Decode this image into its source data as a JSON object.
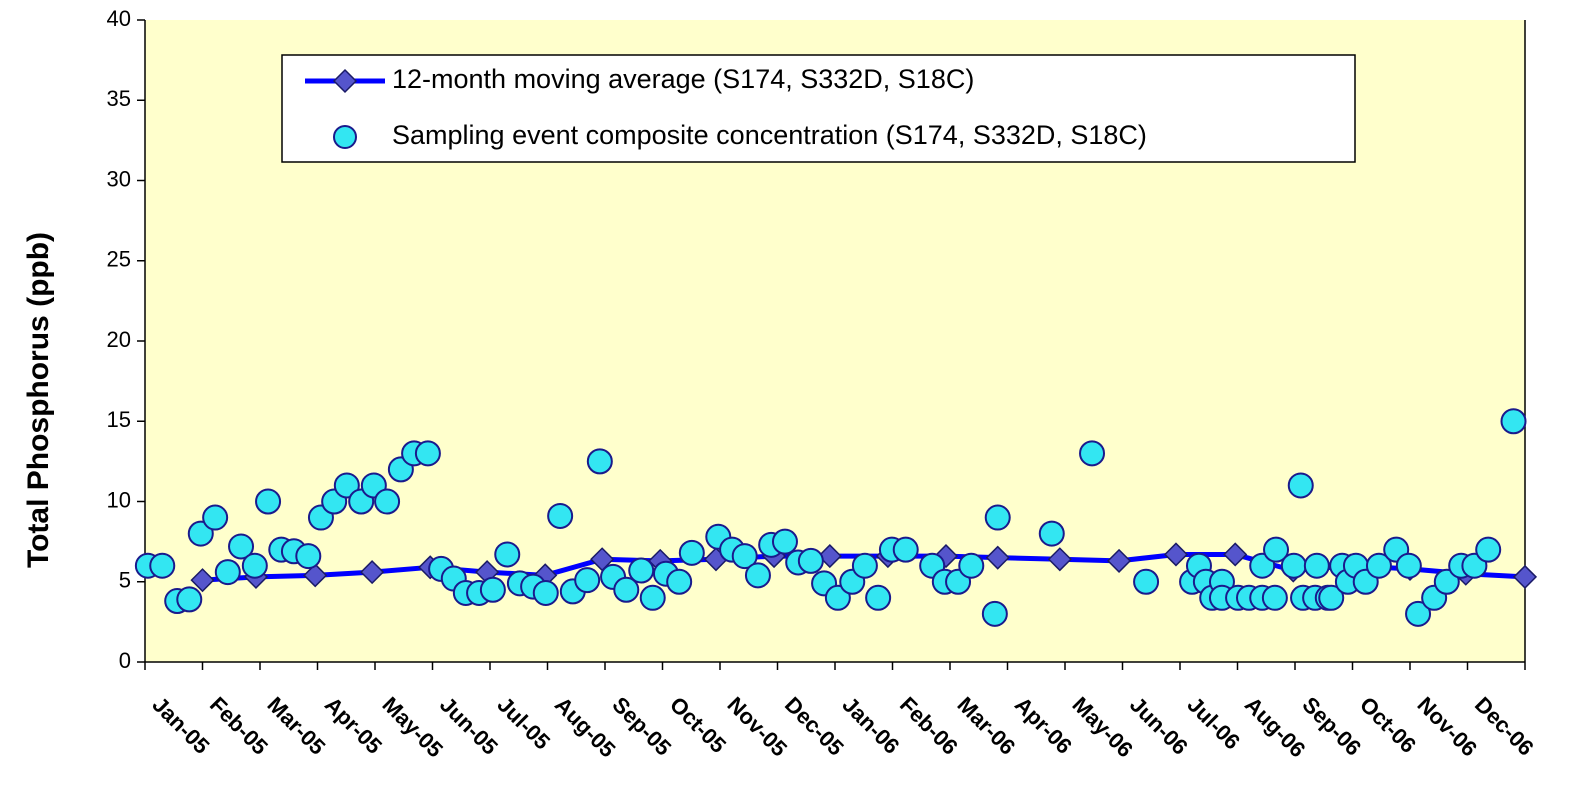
{
  "chart_data": {
    "type": "line",
    "y_label": "Total Phosphorus (ppb)",
    "xlim": [
      0,
      24
    ],
    "xticks": [
      {
        "value": 0,
        "label": "Jan-05"
      },
      {
        "value": 1,
        "label": "Feb-05"
      },
      {
        "value": 2,
        "label": "Mar-05"
      },
      {
        "value": 3,
        "label": "Apr-05"
      },
      {
        "value": 4,
        "label": "May-05"
      },
      {
        "value": 5,
        "label": "Jun-05"
      },
      {
        "value": 6,
        "label": "Jul-05"
      },
      {
        "value": 7,
        "label": "Aug-05"
      },
      {
        "value": 8,
        "label": "Sep-05"
      },
      {
        "value": 9,
        "label": "Oct-05"
      },
      {
        "value": 10,
        "label": "Nov-05"
      },
      {
        "value": 11,
        "label": "Dec-05"
      },
      {
        "value": 12,
        "label": "Jan-06"
      },
      {
        "value": 13,
        "label": "Feb-06"
      },
      {
        "value": 14,
        "label": "Mar-06"
      },
      {
        "value": 15,
        "label": "Apr-06"
      },
      {
        "value": 16,
        "label": "May-06"
      },
      {
        "value": 17,
        "label": "Jun-06"
      },
      {
        "value": 18,
        "label": "Jul-06"
      },
      {
        "value": 19,
        "label": "Aug-06"
      },
      {
        "value": 20,
        "label": "Sep-06"
      },
      {
        "value": 21,
        "label": "Oct-06"
      },
      {
        "value": 22,
        "label": "Nov-06"
      },
      {
        "value": 23,
        "label": "Dec-06"
      }
    ],
    "ylim": [
      0,
      40
    ],
    "yticks": [
      0,
      5,
      10,
      15,
      20,
      25,
      30,
      35,
      40
    ],
    "grid": false,
    "legend": "upper center",
    "plot_background": "#ffffcc",
    "series": [
      {
        "name": "12-month moving average (S174, S332D, S18C)",
        "color": "#0000ff",
        "marker_color": "#5555cc",
        "mode": "lines+markers",
        "x": [
          1,
          1.93,
          2.96,
          3.95,
          4.96,
          5.95,
          6.96,
          7.95,
          8.96,
          9.93,
          10.94,
          11.91,
          12.92,
          13.93,
          14.83,
          15.91,
          16.94,
          17.93,
          18.96,
          19.97,
          20.96,
          22.0,
          22.97,
          24.0
        ],
        "values": [
          5.1,
          5.3,
          5.4,
          5.6,
          5.9,
          5.6,
          5.4,
          6.4,
          6.3,
          6.4,
          6.6,
          6.6,
          6.6,
          6.6,
          6.5,
          6.4,
          6.3,
          6.7,
          6.7,
          5.7,
          6.0,
          5.8,
          5.5,
          5.3
        ]
      },
      {
        "name": "Sampling event composite concentration (S174, S332D, S18C)",
        "color": "#33e6f2",
        "mode": "markers",
        "x": [
          0.05,
          0.3,
          0.56,
          0.77,
          0.97,
          1.22,
          1.44,
          1.67,
          1.91,
          2.14,
          2.37,
          2.59,
          2.84,
          3.06,
          3.29,
          3.51,
          3.76,
          3.98,
          4.21,
          4.45,
          4.68,
          4.92,
          5.15,
          5.37,
          5.58,
          5.81,
          6.05,
          6.3,
          6.52,
          6.75,
          6.97,
          7.22,
          7.44,
          7.69,
          7.91,
          8.14,
          8.37,
          8.63,
          8.83,
          9.06,
          9.29,
          9.51,
          9.97,
          10.21,
          10.43,
          10.66,
          10.89,
          11.13,
          11.36,
          11.58,
          11.81,
          12.05,
          12.3,
          12.52,
          12.75,
          12.99,
          13.23,
          13.69,
          13.91,
          14.14,
          14.37,
          14.78,
          14.83,
          15.77,
          16.47,
          17.41,
          18.21,
          18.33,
          18.45,
          18.56,
          18.73,
          18.73,
          19.01,
          19.2,
          19.43,
          19.43,
          19.65,
          19.67,
          19.98,
          20.1,
          20.14,
          20.35,
          20.38,
          20.57,
          20.63,
          20.82,
          20.92,
          21.06,
          21.23,
          21.46,
          21.76,
          21.98,
          22.14,
          22.42,
          22.64,
          22.89,
          23.12,
          23.36,
          23.8
        ],
        "values": [
          6,
          6,
          3.8,
          3.9,
          8,
          9,
          5.6,
          7.2,
          6,
          10,
          7,
          6.9,
          6.6,
          9,
          10,
          11,
          10,
          11,
          10,
          12,
          13,
          13,
          5.8,
          5.2,
          4.3,
          4.3,
          4.5,
          6.7,
          4.9,
          4.7,
          4.3,
          9.1,
          4.4,
          5.1,
          12.5,
          5.3,
          4.5,
          5.7,
          4,
          5.5,
          5,
          6.8,
          7.8,
          7,
          6.6,
          5.4,
          7.3,
          7.5,
          6.2,
          6.3,
          4.9,
          4,
          5,
          6,
          4,
          7,
          7,
          6,
          5,
          5,
          6,
          3,
          9,
          8,
          13,
          5,
          5,
          6,
          5,
          4,
          5,
          4,
          4,
          4,
          6,
          4,
          4,
          7,
          6,
          11,
          4,
          4,
          6,
          4,
          4,
          6,
          5,
          6,
          5,
          6,
          7,
          6,
          3,
          4,
          5,
          6,
          6,
          7,
          15
        ]
      }
    ]
  }
}
